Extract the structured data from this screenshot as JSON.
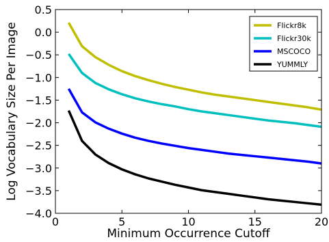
{
  "chart_data": {
    "type": "line",
    "title": "",
    "xlabel": "Minimum Occurrence Cutoff",
    "ylabel": "Log Vocabulary Size Per Image",
    "xlim": [
      0,
      20
    ],
    "ylim": [
      -4.0,
      0.5
    ],
    "xticks": [
      0,
      5,
      10,
      15,
      20
    ],
    "xtick_labels": [
      "0",
      "5",
      "10",
      "15",
      "20"
    ],
    "yticks": [
      0.5,
      0.0,
      -0.5,
      -1.0,
      -1.5,
      -2.0,
      -2.5,
      -3.0,
      -3.5,
      -4.0
    ],
    "ytick_labels": [
      "0.5",
      "0.0",
      "−0.5",
      "−1.0",
      "−1.5",
      "−2.0",
      "−2.5",
      "−3.0",
      "−3.5",
      "−4.0"
    ],
    "grid": false,
    "legend_position": "top-right",
    "x": [
      1,
      2,
      3,
      4,
      5,
      6,
      7,
      8,
      9,
      10,
      11,
      12,
      13,
      14,
      15,
      16,
      17,
      18,
      19,
      20
    ],
    "series": [
      {
        "name": "Flickr8k",
        "color": "#bfbf00",
        "values": [
          0.21,
          -0.31,
          -0.55,
          -0.72,
          -0.86,
          -0.97,
          -1.06,
          -1.14,
          -1.21,
          -1.27,
          -1.33,
          -1.38,
          -1.42,
          -1.46,
          -1.5,
          -1.54,
          -1.58,
          -1.62,
          -1.66,
          -1.71
        ]
      },
      {
        "name": "Flickr30k",
        "color": "#00bfbf",
        "values": [
          -0.48,
          -0.9,
          -1.12,
          -1.26,
          -1.37,
          -1.46,
          -1.53,
          -1.59,
          -1.64,
          -1.7,
          -1.75,
          -1.79,
          -1.83,
          -1.87,
          -1.91,
          -1.95,
          -1.98,
          -2.01,
          -2.05,
          -2.09
        ]
      },
      {
        "name": "MSCOCO",
        "color": "#0000ff",
        "values": [
          -1.25,
          -1.77,
          -1.99,
          -2.13,
          -2.24,
          -2.33,
          -2.4,
          -2.46,
          -2.51,
          -2.56,
          -2.6,
          -2.64,
          -2.68,
          -2.71,
          -2.74,
          -2.77,
          -2.8,
          -2.83,
          -2.86,
          -2.9
        ]
      },
      {
        "name": "YUMMLY",
        "color": "#000000",
        "values": [
          -1.73,
          -2.4,
          -2.7,
          -2.89,
          -3.03,
          -3.14,
          -3.23,
          -3.3,
          -3.37,
          -3.43,
          -3.49,
          -3.53,
          -3.57,
          -3.61,
          -3.65,
          -3.69,
          -3.72,
          -3.75,
          -3.78,
          -3.81
        ]
      }
    ]
  }
}
